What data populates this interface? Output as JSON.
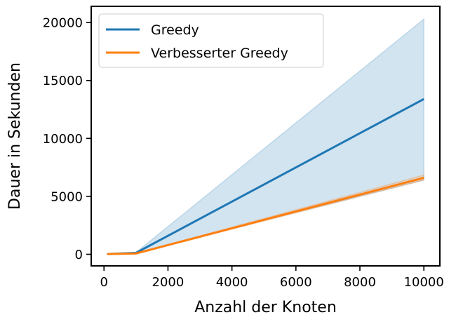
{
  "chart_data": {
    "type": "line",
    "xlabel": "Anzahl der Knoten",
    "ylabel": "Dauer in Sekunden",
    "xlim": [
      -400,
      10500
    ],
    "ylim": [
      -1000,
      21400
    ],
    "xticks": [
      0,
      2000,
      4000,
      6000,
      8000,
      10000
    ],
    "yticks": [
      0,
      5000,
      10000,
      15000,
      20000
    ],
    "legend_position": "top-left",
    "grid": false,
    "series": [
      {
        "name": "Greedy",
        "color": "#1f77b4",
        "x": [
          100,
          1000,
          10000
        ],
        "y": [
          20,
          120,
          13400
        ],
        "ci_lower": [
          10,
          90,
          6400
        ],
        "ci_upper": [
          40,
          160,
          20300
        ]
      },
      {
        "name": "Verbesserter Greedy",
        "color": "#ff7f0e",
        "x": [
          100,
          1000,
          10000
        ],
        "y": [
          20,
          70,
          6600
        ],
        "ci_lower": [
          10,
          50,
          6400
        ],
        "ci_upper": [
          30,
          100,
          6850
        ]
      }
    ]
  }
}
